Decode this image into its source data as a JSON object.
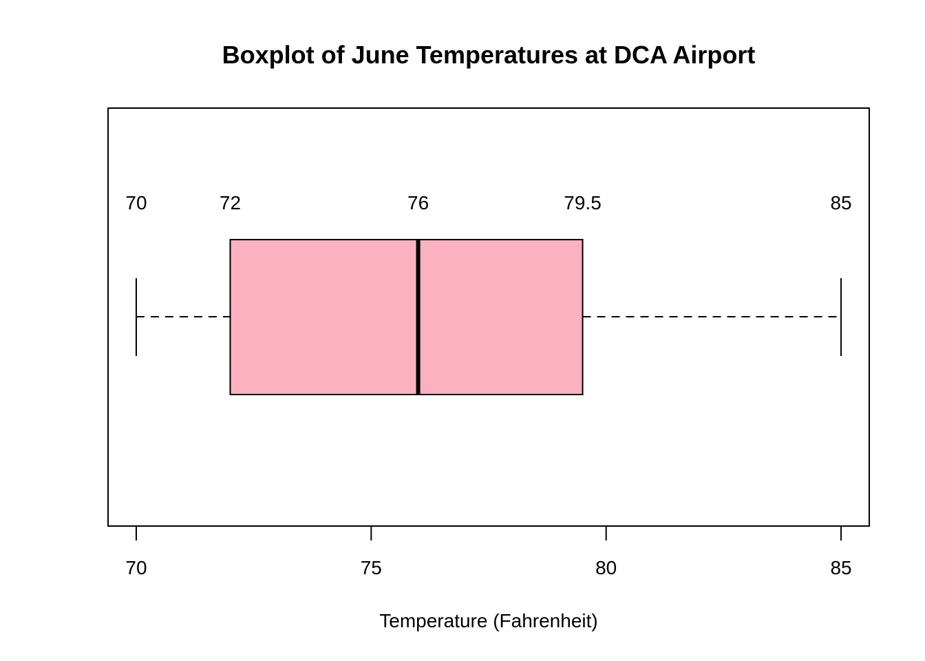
{
  "chart_data": {
    "type": "boxplot",
    "orientation": "horizontal",
    "title": "Boxplot of June Temperatures at DCA Airport",
    "xlabel": "Temperature (Fahrenheit)",
    "ylabel": "",
    "xlim": [
      69.4,
      85.6
    ],
    "xticks": [
      70,
      75,
      80,
      85
    ],
    "xtick_labels": [
      "70",
      "75",
      "80",
      "85"
    ],
    "stats": {
      "min": 70,
      "q1": 72,
      "median": 76,
      "q3": 79.5,
      "max": 85
    },
    "stat_labels": [
      "70",
      "72",
      "76",
      "79.5",
      "85"
    ],
    "box_fill": "#FBB1C0",
    "line_color": "#000000"
  }
}
